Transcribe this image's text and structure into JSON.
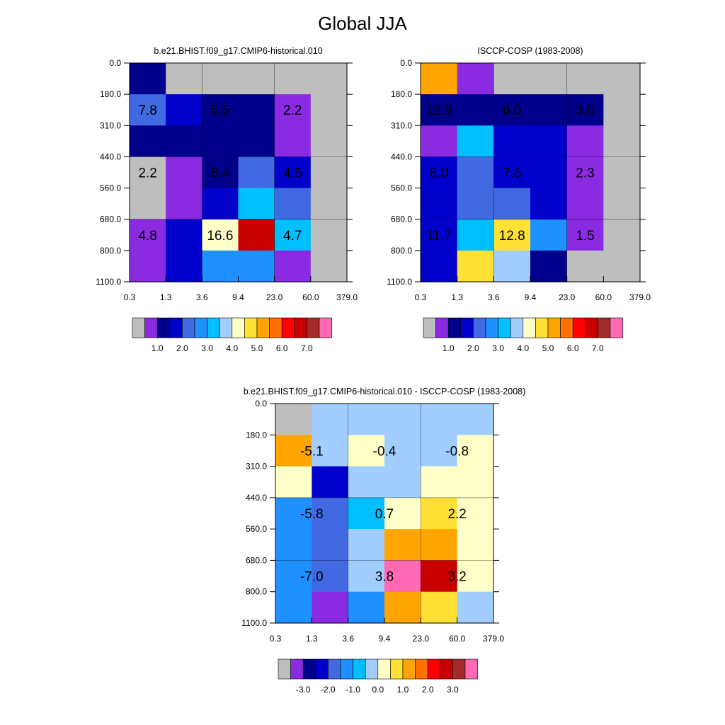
{
  "figure": {
    "title": "Global JJA"
  },
  "chart_data": [
    {
      "type": "heatmap",
      "title": "b.e21.BHIST.f09_g17.CMIP6-historical.010",
      "x_ticks": [
        "0.3",
        "1.3",
        "3.6",
        "9.4",
        "23.0",
        "60.0",
        "379.0"
      ],
      "y_ticks": [
        "0.0",
        "180.0",
        "310.0",
        "440.0",
        "560.0",
        "680.0",
        "800.0",
        "1100.0"
      ],
      "colorbar_labels": [
        "1.0",
        "2.0",
        "3.0",
        "4.0",
        "5.0",
        "6.0",
        "7.0"
      ],
      "colors": [
        "#bebebe",
        "#8a2be2",
        "#00008b",
        "#0000cd",
        "#4169e1",
        "#1e90ff",
        "#00bfff",
        "#a2cdff",
        "#ffffc8",
        "#ffe135",
        "#ffa500",
        "#ff7000",
        "#ff0000",
        "#c80000",
        "#a52a2a",
        "#ff69b4"
      ],
      "cells": [
        [
          2,
          0,
          0,
          0,
          0,
          0
        ],
        [
          4,
          3,
          2,
          2,
          1,
          0
        ],
        [
          2,
          2,
          2,
          2,
          1,
          0
        ],
        [
          0,
          1,
          2,
          4,
          3,
          0
        ],
        [
          0,
          1,
          3,
          6,
          4,
          0
        ],
        [
          1,
          3,
          8,
          13,
          6,
          0
        ],
        [
          1,
          3,
          5,
          5,
          1,
          0
        ]
      ],
      "annotations": [
        {
          "col": 0.5,
          "row": 1.5,
          "text": "7.8"
        },
        {
          "col": 2.5,
          "row": 1.5,
          "text": "5.5"
        },
        {
          "col": 4.5,
          "row": 1.5,
          "text": "2.2"
        },
        {
          "col": 0.5,
          "row": 3.5,
          "text": "2.2"
        },
        {
          "col": 2.5,
          "row": 3.5,
          "text": "8.4"
        },
        {
          "col": 4.5,
          "row": 3.5,
          "text": "4.5"
        },
        {
          "col": 0.5,
          "row": 5.5,
          "text": "4.8"
        },
        {
          "col": 2.5,
          "row": 5.5,
          "text": "16.6"
        },
        {
          "col": 4.5,
          "row": 5.5,
          "text": "4.7"
        }
      ]
    },
    {
      "type": "heatmap",
      "title": "ISCCP-COSP (1983-2008)",
      "x_ticks": [
        "0.3",
        "1.3",
        "3.6",
        "9.4",
        "23.0",
        "60.0",
        "379.0"
      ],
      "y_ticks": [
        "0.0",
        "180.0",
        "310.0",
        "440.0",
        "560.0",
        "680.0",
        "800.0",
        "1100.0"
      ],
      "colorbar_labels": [
        "1.0",
        "2.0",
        "3.0",
        "4.0",
        "5.0",
        "6.0",
        "7.0"
      ],
      "colors": [
        "#bebebe",
        "#8a2be2",
        "#00008b",
        "#0000cd",
        "#4169e1",
        "#1e90ff",
        "#00bfff",
        "#a2cdff",
        "#ffffc8",
        "#ffe135",
        "#ffa500",
        "#ff7000",
        "#ff0000",
        "#c80000",
        "#a52a2a",
        "#ff69b4"
      ],
      "cells": [
        [
          10,
          1,
          0,
          0,
          0,
          0
        ],
        [
          2,
          2,
          2,
          2,
          2,
          0
        ],
        [
          1,
          6,
          3,
          3,
          1,
          0
        ],
        [
          3,
          4,
          3,
          3,
          1,
          0
        ],
        [
          3,
          4,
          4,
          3,
          1,
          0
        ],
        [
          3,
          6,
          9,
          5,
          1,
          0
        ],
        [
          3,
          9,
          7,
          2,
          0,
          0
        ]
      ],
      "annotations": [
        {
          "col": 0.5,
          "row": 1.5,
          "text": "12.9"
        },
        {
          "col": 2.5,
          "row": 1.5,
          "text": "6.0"
        },
        {
          "col": 4.5,
          "row": 1.5,
          "text": "3.0"
        },
        {
          "col": 0.5,
          "row": 3.5,
          "text": "8.0"
        },
        {
          "col": 2.5,
          "row": 3.5,
          "text": "7.6"
        },
        {
          "col": 4.5,
          "row": 3.5,
          "text": "2.3"
        },
        {
          "col": 0.5,
          "row": 5.5,
          "text": "11.7"
        },
        {
          "col": 2.5,
          "row": 5.5,
          "text": "12.8"
        },
        {
          "col": 4.5,
          "row": 5.5,
          "text": "1.5"
        }
      ]
    },
    {
      "type": "heatmap",
      "title": "b.e21.BHIST.f09_g17.CMIP6-historical.010 - ISCCP-COSP (1983-2008)",
      "x_ticks": [
        "0.3",
        "1.3",
        "3.6",
        "9.4",
        "23.0",
        "60.0",
        "379.0"
      ],
      "y_ticks": [
        "0.0",
        "180.0",
        "310.0",
        "440.0",
        "560.0",
        "680.0",
        "800.0",
        "1100.0"
      ],
      "colorbar_labels": [
        "-3.0",
        "-2.0",
        "-1.0",
        "0.0",
        "1.0",
        "2.0",
        "3.0"
      ],
      "colors": [
        "#bebebe",
        "#8a2be2",
        "#00008b",
        "#0000cd",
        "#4169e1",
        "#1e90ff",
        "#00bfff",
        "#a2cdff",
        "#ffffc8",
        "#ffe135",
        "#ffa500",
        "#ff7000",
        "#ff0000",
        "#c80000",
        "#a52a2a",
        "#ff69b4"
      ],
      "cells": [
        [
          0,
          7,
          7,
          7,
          7,
          7
        ],
        [
          10,
          7,
          8,
          7,
          7,
          8
        ],
        [
          8,
          3,
          7,
          7,
          8,
          8
        ],
        [
          5,
          4,
          6,
          8,
          9,
          8
        ],
        [
          5,
          4,
          7,
          10,
          10,
          8
        ],
        [
          5,
          4,
          7,
          15,
          13,
          8
        ],
        [
          5,
          1,
          5,
          10,
          9,
          7
        ]
      ],
      "annotations": [
        {
          "col": 1.0,
          "row": 1.5,
          "text": "-5.1"
        },
        {
          "col": 3.0,
          "row": 1.5,
          "text": "-0.4"
        },
        {
          "col": 5.0,
          "row": 1.5,
          "text": "-0.8"
        },
        {
          "col": 1.0,
          "row": 3.5,
          "text": "-5.8"
        },
        {
          "col": 3.0,
          "row": 3.5,
          "text": "0.7"
        },
        {
          "col": 5.0,
          "row": 3.5,
          "text": "2.2"
        },
        {
          "col": 1.0,
          "row": 5.5,
          "text": "-7.0"
        },
        {
          "col": 3.0,
          "row": 5.5,
          "text": "3.8"
        },
        {
          "col": 5.0,
          "row": 5.5,
          "text": "3.2"
        }
      ]
    }
  ]
}
